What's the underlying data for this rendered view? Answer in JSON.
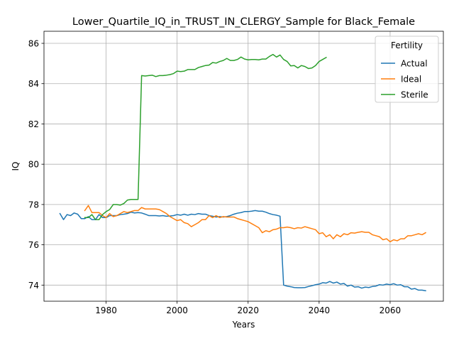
{
  "chart_data": {
    "type": "line",
    "title": "Lower_Quartile_IQ_in_TRUST_IN_CLERGY_Sample for Black_Female",
    "xlabel": "Years",
    "ylabel": "IQ",
    "xlim": [
      1962.5,
      2075
    ],
    "ylim": [
      73.2,
      86.6
    ],
    "xticks": [
      1980,
      2000,
      2020,
      2040,
      2060
    ],
    "yticks": [
      74,
      76,
      78,
      80,
      82,
      84,
      86
    ],
    "grid": true,
    "legend": {
      "title": "Fertility",
      "placement": "top-right"
    },
    "series": [
      {
        "name": "Actual",
        "color": "#1f77b4",
        "x": [
          1967,
          1968,
          1969,
          1970,
          1971,
          1972,
          1973,
          1974,
          1975,
          1976,
          1977,
          1978,
          1979,
          1980,
          1981,
          1982,
          1983,
          1984,
          1985,
          1986,
          1987,
          1988,
          1989,
          1990,
          1991,
          1992,
          1993,
          1994,
          1995,
          1996,
          1997,
          1998,
          1999,
          2000,
          2001,
          2002,
          2003,
          2004,
          2005,
          2006,
          2007,
          2008,
          2009,
          2010,
          2011,
          2012,
          2013,
          2014,
          2015,
          2016,
          2017,
          2018,
          2019,
          2020,
          2021,
          2022,
          2023,
          2024,
          2025,
          2026,
          2027,
          2028,
          2029,
          2030,
          2031,
          2032,
          2033,
          2034,
          2035,
          2036,
          2037,
          2038,
          2039,
          2040,
          2041,
          2042,
          2043,
          2044,
          2045,
          2046,
          2047,
          2048,
          2049,
          2050,
          2051,
          2052,
          2053,
          2054,
          2055,
          2056,
          2057,
          2058,
          2059,
          2060,
          2061,
          2062,
          2063,
          2064,
          2065,
          2066,
          2067,
          2068,
          2069,
          2070
        ],
        "y": [
          77.55,
          77.25,
          77.5,
          77.45,
          77.58,
          77.52,
          77.3,
          77.3,
          77.4,
          77.25,
          77.25,
          77.5,
          77.35,
          77.35,
          77.45,
          77.45,
          77.45,
          77.5,
          77.52,
          77.55,
          77.62,
          77.58,
          77.6,
          77.58,
          77.52,
          77.45,
          77.45,
          77.45,
          77.43,
          77.45,
          77.42,
          77.43,
          77.45,
          77.5,
          77.47,
          77.52,
          77.47,
          77.52,
          77.5,
          77.55,
          77.52,
          77.52,
          77.45,
          77.42,
          77.38,
          77.4,
          77.38,
          77.4,
          77.45,
          77.52,
          77.57,
          77.6,
          77.65,
          77.65,
          77.67,
          77.7,
          77.67,
          77.67,
          77.62,
          77.55,
          77.5,
          77.47,
          77.42,
          74.0,
          73.95,
          73.92,
          73.88,
          73.87,
          73.87,
          73.88,
          73.93,
          73.97,
          74.02,
          74.05,
          74.12,
          74.1,
          74.18,
          74.1,
          74.15,
          74.05,
          74.08,
          73.95,
          74.0,
          73.9,
          73.92,
          73.85,
          73.9,
          73.88,
          73.93,
          73.95,
          74.02,
          74.0,
          74.05,
          74.02,
          74.07,
          74.0,
          74.02,
          73.92,
          73.92,
          73.8,
          73.83,
          73.75,
          73.75,
          73.72
        ]
      },
      {
        "name": "Ideal",
        "color": "#ff7f0e",
        "x": [
          1974,
          1975,
          1976,
          1977,
          1978,
          1979,
          1980,
          1981,
          1982,
          1983,
          1984,
          1985,
          1986,
          1987,
          1988,
          1989,
          1990,
          1991,
          1992,
          1993,
          1994,
          1995,
          1996,
          1997,
          1998,
          1999,
          2000,
          2001,
          2002,
          2003,
          2004,
          2005,
          2006,
          2007,
          2008,
          2009,
          2010,
          2011,
          2012,
          2013,
          2014,
          2015,
          2016,
          2017,
          2018,
          2019,
          2020,
          2021,
          2022,
          2023,
          2024,
          2025,
          2026,
          2027,
          2028,
          2029,
          2030,
          2031,
          2032,
          2033,
          2034,
          2035,
          2036,
          2037,
          2038,
          2039,
          2040,
          2041,
          2042,
          2043,
          2044,
          2045,
          2046,
          2047,
          2048,
          2049,
          2050,
          2051,
          2052,
          2053,
          2054,
          2055,
          2056,
          2057,
          2058,
          2059,
          2060,
          2061,
          2062,
          2063,
          2064,
          2065,
          2066,
          2067,
          2068,
          2069,
          2070
        ],
        "y": [
          77.7,
          77.95,
          77.6,
          77.6,
          77.6,
          77.45,
          77.35,
          77.55,
          77.4,
          77.45,
          77.55,
          77.65,
          77.6,
          77.65,
          77.7,
          77.7,
          77.85,
          77.78,
          77.78,
          77.78,
          77.78,
          77.75,
          77.65,
          77.55,
          77.4,
          77.3,
          77.2,
          77.25,
          77.1,
          77.05,
          76.9,
          77.0,
          77.1,
          77.25,
          77.25,
          77.45,
          77.35,
          77.45,
          77.35,
          77.4,
          77.38,
          77.38,
          77.38,
          77.3,
          77.25,
          77.2,
          77.15,
          77.05,
          76.95,
          76.85,
          76.6,
          76.7,
          76.65,
          76.75,
          76.78,
          76.85,
          76.85,
          76.88,
          76.85,
          76.8,
          76.85,
          76.83,
          76.9,
          76.85,
          76.8,
          76.75,
          76.55,
          76.6,
          76.4,
          76.5,
          76.3,
          76.5,
          76.4,
          76.55,
          76.5,
          76.6,
          76.58,
          76.62,
          76.65,
          76.62,
          76.62,
          76.5,
          76.45,
          76.4,
          76.25,
          76.3,
          76.15,
          76.25,
          76.2,
          76.3,
          76.3,
          76.45,
          76.45,
          76.5,
          76.55,
          76.5,
          76.6
        ]
      },
      {
        "name": "Sterile",
        "color": "#2ca02c",
        "x": [
          1974,
          1975,
          1976,
          1977,
          1978,
          1979,
          1980,
          1981,
          1982,
          1983,
          1984,
          1985,
          1986,
          1987,
          1988,
          1989,
          1990,
          1991,
          1992,
          1993,
          1994,
          1995,
          1996,
          1997,
          1998,
          1999,
          2000,
          2001,
          2002,
          2003,
          2004,
          2005,
          2006,
          2007,
          2008,
          2009,
          2010,
          2011,
          2012,
          2013,
          2014,
          2015,
          2016,
          2017,
          2018,
          2019,
          2020,
          2021,
          2022,
          2023,
          2024,
          2025,
          2026,
          2027,
          2028,
          2029,
          2030,
          2031,
          2032,
          2033,
          2034,
          2035,
          2036,
          2037,
          2038,
          2039,
          2040,
          2041,
          2042
        ],
        "y": [
          77.35,
          77.35,
          77.5,
          77.25,
          77.25,
          77.5,
          77.65,
          77.75,
          78.0,
          78.0,
          77.97,
          78.05,
          78.22,
          78.25,
          78.25,
          78.25,
          84.4,
          84.38,
          84.4,
          84.42,
          84.35,
          84.4,
          84.4,
          84.42,
          84.45,
          84.5,
          84.62,
          84.6,
          84.62,
          84.7,
          84.7,
          84.7,
          84.8,
          84.85,
          84.9,
          84.92,
          85.05,
          85.02,
          85.1,
          85.15,
          85.25,
          85.15,
          85.15,
          85.2,
          85.32,
          85.22,
          85.18,
          85.2,
          85.2,
          85.18,
          85.22,
          85.22,
          85.35,
          85.45,
          85.32,
          85.42,
          85.2,
          85.1,
          84.88,
          84.9,
          84.78,
          84.9,
          84.85,
          84.75,
          84.78,
          84.9,
          85.1,
          85.2,
          85.3
        ]
      }
    ]
  }
}
